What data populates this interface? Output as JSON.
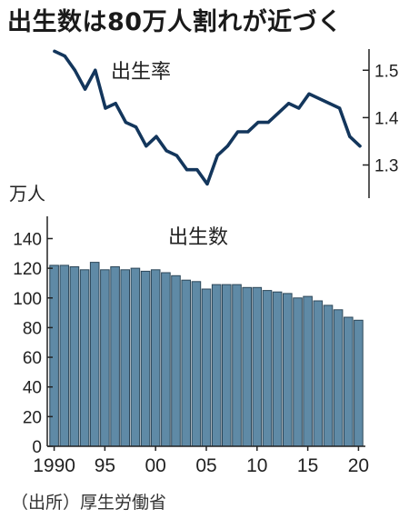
{
  "title": "出生数は80万人割れが近づく",
  "source": "（出所）厚生労働省",
  "colors": {
    "line": "#13365c",
    "bar_fill": "#5f8aa6",
    "bar_stroke": "#2c4658",
    "axis": "#222222"
  },
  "chart_data": [
    {
      "type": "line",
      "title": "出生率",
      "x": [
        1990,
        1991,
        1992,
        1993,
        1994,
        1995,
        1996,
        1997,
        1998,
        1999,
        2000,
        2001,
        2002,
        2003,
        2004,
        2005,
        2006,
        2007,
        2008,
        2009,
        2010,
        2011,
        2012,
        2013,
        2014,
        2015,
        2016,
        2017,
        2018,
        2019,
        2020
      ],
      "series": [
        {
          "values": [
            1.54,
            1.53,
            1.5,
            1.46,
            1.5,
            1.42,
            1.43,
            1.39,
            1.38,
            1.34,
            1.36,
            1.33,
            1.32,
            1.29,
            1.29,
            1.26,
            1.32,
            1.34,
            1.37,
            1.37,
            1.39,
            1.39,
            1.41,
            1.43,
            1.42,
            1.45,
            1.44,
            1.43,
            1.42,
            1.36,
            1.34
          ]
        }
      ],
      "y_ticks": [
        "1.5",
        "1.4",
        "1.3"
      ],
      "ylim": [
        1.23,
        1.56
      ],
      "y_axis_position": "right",
      "grid": false
    },
    {
      "type": "bar",
      "title": "出生数",
      "ylabel": "万人",
      "categories": [
        1990,
        1991,
        1992,
        1993,
        1994,
        1995,
        1996,
        1997,
        1998,
        1999,
        2000,
        2001,
        2002,
        2003,
        2004,
        2005,
        2006,
        2007,
        2008,
        2009,
        2010,
        2011,
        2012,
        2013,
        2014,
        2015,
        2016,
        2017,
        2018,
        2019,
        2020
      ],
      "values": [
        122,
        122,
        121,
        119,
        124,
        119,
        121,
        119,
        120,
        118,
        119,
        117,
        115,
        112,
        111,
        106,
        109,
        109,
        109,
        107,
        107,
        105,
        104,
        103,
        100,
        101,
        98,
        95,
        92,
        87,
        85
      ],
      "x_tick_labels": [
        "1990",
        "95",
        "00",
        "05",
        "10",
        "15",
        "20"
      ],
      "y_ticks": [
        "0",
        "20",
        "40",
        "60",
        "80",
        "100",
        "120",
        "140"
      ],
      "ylim": [
        0,
        155
      ],
      "grid": false
    }
  ]
}
